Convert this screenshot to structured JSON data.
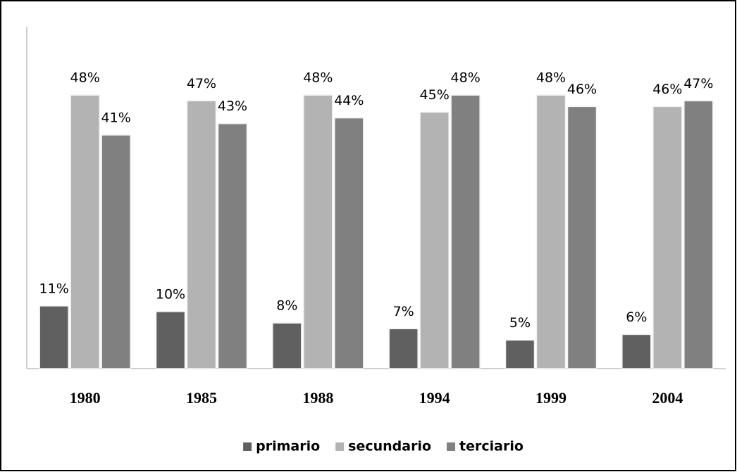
{
  "chart_data": {
    "type": "bar",
    "categories": [
      "1980",
      "1985",
      "1988",
      "1994",
      "1999",
      "2004"
    ],
    "series": [
      {
        "name": "primario",
        "color": "#606060",
        "values": [
          11,
          10,
          8,
          7,
          5,
          6
        ],
        "value_labels": [
          "11%",
          "10%",
          "8%",
          "7%",
          "5%",
          "6%"
        ]
      },
      {
        "name": "secundario",
        "color": "#b3b3b3",
        "values": [
          48,
          47,
          48,
          45,
          48,
          46
        ],
        "value_labels": [
          "48%",
          "47%",
          "48%",
          "45%",
          "48%",
          "46%"
        ]
      },
      {
        "name": "terciario",
        "color": "#808080",
        "values": [
          41,
          43,
          44,
          48,
          46,
          47
        ],
        "value_labels": [
          "41%",
          "43%",
          "44%",
          "48%",
          "46%",
          "47%"
        ]
      }
    ],
    "ylim": [
      0,
      60
    ],
    "legend": "bottom"
  }
}
